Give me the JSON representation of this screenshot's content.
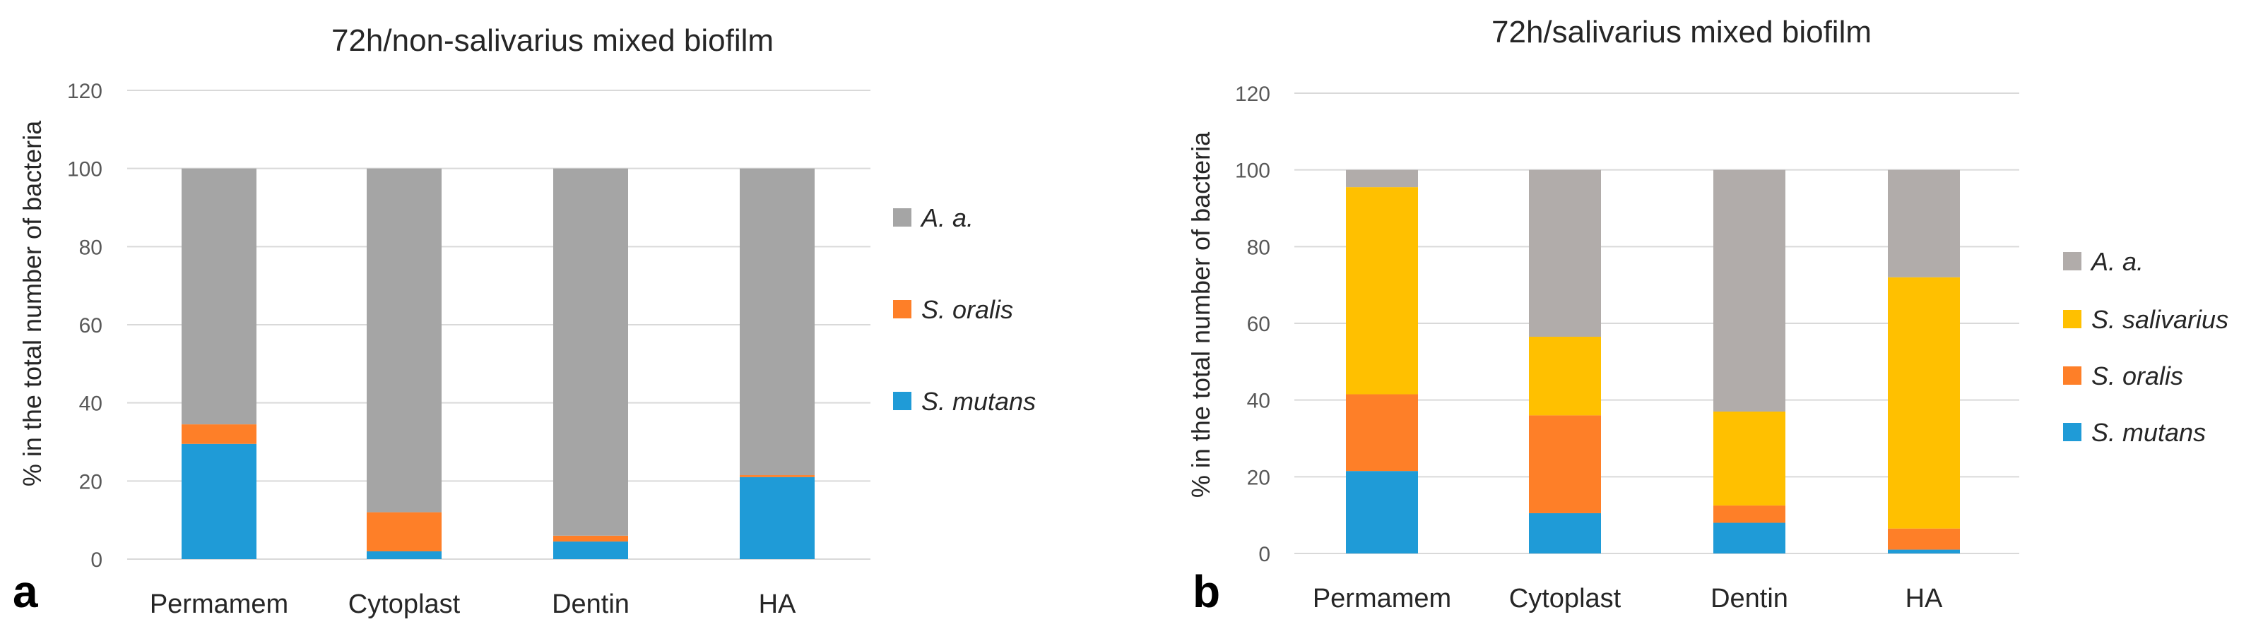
{
  "chart_data": [
    {
      "type": "stacked-bar",
      "panel_label": "a",
      "title": "72h/non-salivarius mixed biofilm",
      "ylabel": "% in the total number of bacteria",
      "xlabel": "",
      "ylim": [
        0,
        120
      ],
      "yticks": [
        0,
        20,
        40,
        60,
        80,
        100,
        120
      ],
      "grid": true,
      "legend_position": "right",
      "categories": [
        "Permamem",
        "Cytoplast",
        "Dentin",
        "HA"
      ],
      "series": [
        {
          "name": "S. mutans",
          "color": "#1f9bd7",
          "values": [
            29.5,
            2,
            4.5,
            21
          ]
        },
        {
          "name": "S. oralis",
          "color": "#fe7f28",
          "values": [
            5,
            10,
            1.5,
            0.5
          ]
        },
        {
          "name": "A. a.",
          "color": "#a5a5a5",
          "values": [
            65.5,
            88,
            94,
            78.5
          ]
        }
      ],
      "legend_order": [
        "A. a.",
        "S. oralis",
        "S. mutans"
      ]
    },
    {
      "type": "stacked-bar",
      "panel_label": "b",
      "title": "72h/salivarius mixed biofilm",
      "ylabel": "% in the total number of bacteria",
      "xlabel": "",
      "ylim": [
        0,
        120
      ],
      "yticks": [
        0,
        20,
        40,
        60,
        80,
        100,
        120
      ],
      "grid": true,
      "legend_position": "right",
      "categories": [
        "Permamem",
        "Cytoplast",
        "Dentin",
        "HA"
      ],
      "series": [
        {
          "name": "S. mutans",
          "color": "#1f9bd7",
          "values": [
            21.5,
            10.5,
            8,
            1
          ]
        },
        {
          "name": "S. oralis",
          "color": "#fe7f28",
          "values": [
            20,
            25.5,
            4.5,
            5.5
          ]
        },
        {
          "name": "S. salivarius",
          "color": "#ffc000",
          "values": [
            54,
            20.5,
            24.5,
            65.5
          ]
        },
        {
          "name": "A. a.",
          "color": "#b1acaa",
          "values": [
            4.5,
            43.5,
            63,
            28
          ]
        }
      ],
      "legend_order": [
        "A. a.",
        "S. salivarius",
        "S. oralis",
        "S. mutans"
      ]
    }
  ]
}
